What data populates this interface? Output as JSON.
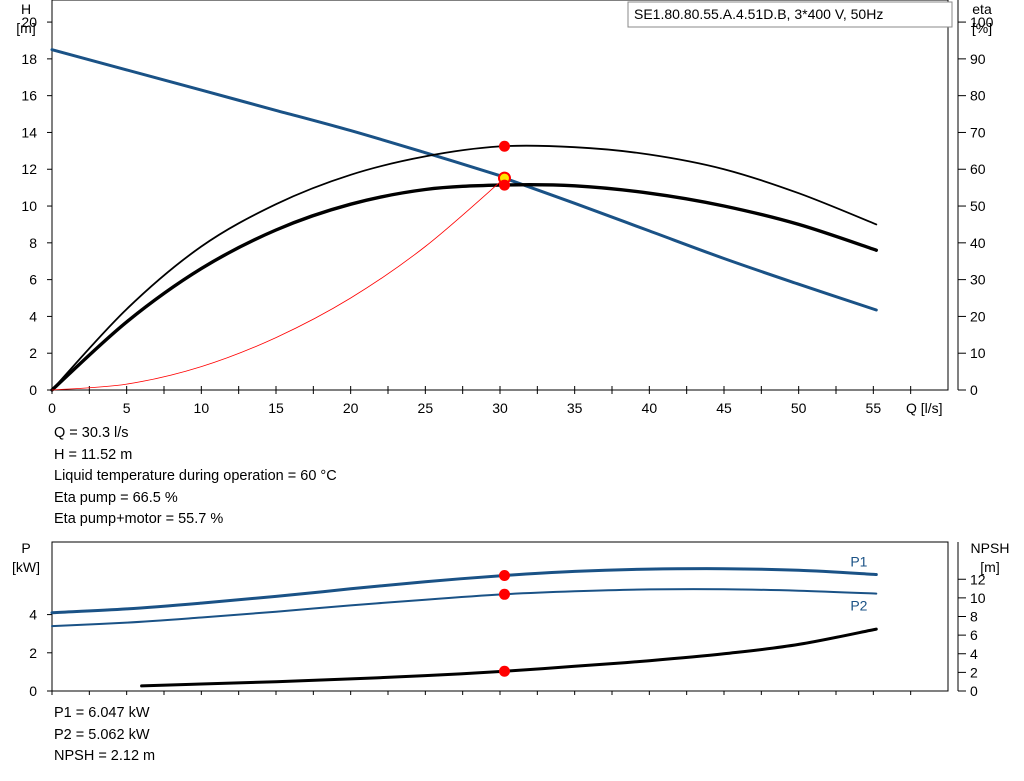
{
  "chart_data": [
    {
      "type": "line",
      "title": "SE1.80.80.55.A.4.51D.B, 3*400  V, 50Hz",
      "xlabel": "Q [l/s]",
      "ylabel_left": [
        "H",
        "[m]"
      ],
      "ylabel_right": [
        "eta",
        "[%]"
      ],
      "xlim": [
        0,
        60
      ],
      "ylim_left": [
        0,
        21.2
      ],
      "ylim_right": [
        0,
        106
      ],
      "x_ticks": [
        "0",
        "5",
        "10",
        "15",
        "20",
        "25",
        "30",
        "35",
        "40",
        "45",
        "50",
        "55"
      ],
      "y_ticks_left": [
        "0",
        "2",
        "4",
        "6",
        "8",
        "10",
        "12",
        "14",
        "16",
        "18",
        "20"
      ],
      "y_ticks_right": [
        "0",
        "10",
        "20",
        "30",
        "40",
        "50",
        "60",
        "70",
        "80",
        "90",
        "100"
      ],
      "grid": false,
      "series": [
        {
          "axis": "left",
          "color": "#1a5286",
          "x": [
            0,
            5,
            10,
            15,
            20,
            25,
            30,
            30.3,
            35,
            40,
            45,
            50,
            55.2
          ],
          "y": [
            18.5,
            17.4,
            16.3,
            15.2,
            14.1,
            12.9,
            11.65,
            11.52,
            10.15,
            8.65,
            7.15,
            5.75,
            4.35
          ]
        },
        {
          "axis": "right",
          "color": "#000000",
          "x": [
            0,
            5,
            10,
            15,
            20,
            25,
            30,
            35,
            40,
            45,
            50,
            55.2
          ],
          "y": [
            0,
            22,
            39,
            50.5,
            58.5,
            63.5,
            66.2,
            66,
            64,
            60,
            53.5,
            45
          ]
        },
        {
          "axis": "right",
          "color": "#000000",
          "x": [
            0,
            5,
            10,
            15,
            20,
            25,
            30,
            35,
            40,
            45,
            50,
            55.2
          ],
          "y": [
            0,
            18.5,
            33,
            43.5,
            50.5,
            54.5,
            55.7,
            55.5,
            53.5,
            50,
            45,
            38
          ]
        },
        {
          "axis": "left",
          "color": "#ff0000",
          "x": [
            0,
            5,
            10,
            15,
            20,
            25,
            30.3
          ],
          "y": [
            0,
            0.32,
            1.27,
            2.85,
            5.0,
            7.8,
            11.52
          ]
        }
      ],
      "operating_points": [
        {
          "axis": "left",
          "x": 30.3,
          "y": 13.25
        },
        {
          "axis": "left",
          "x": 30.3,
          "y": 11.52,
          "marker": "duty"
        },
        {
          "axis": "left",
          "x": 30.3,
          "y": 11.14
        }
      ],
      "readout": [
        "Q = 30.3 l/s",
        "H = 11.52 m",
        "Liquid temperature during operation = 60 °C",
        "Eta pump = 66.5 %",
        "Eta pump+motor = 55.7 %"
      ]
    },
    {
      "type": "line",
      "ylabel_left": [
        "P",
        "[kW]"
      ],
      "ylabel_right": [
        "NPSH",
        "[m]"
      ],
      "xlim": [
        0,
        60
      ],
      "ylim_left": [
        0,
        7.8
      ],
      "ylim_right": [
        0,
        16
      ],
      "y_ticks_left": [
        "0",
        "2",
        "4"
      ],
      "y_ticks_right": [
        "0",
        "2",
        "4",
        "6",
        "8",
        "10",
        "12"
      ],
      "grid": false,
      "series": [
        {
          "name": "P1",
          "axis": "left",
          "color": "#1a5286",
          "x": [
            0,
            5,
            10,
            15,
            20,
            25,
            30.3,
            35,
            40,
            45,
            50,
            55.2
          ],
          "y": [
            4.1,
            4.3,
            4.6,
            4.95,
            5.35,
            5.72,
            6.047,
            6.26,
            6.38,
            6.4,
            6.32,
            6.1
          ]
        },
        {
          "name": "P2",
          "axis": "left",
          "color": "#1a5286",
          "x": [
            0,
            5,
            10,
            15,
            20,
            25,
            30.3,
            35,
            40,
            45,
            50,
            55.2
          ],
          "y": [
            3.4,
            3.58,
            3.85,
            4.15,
            4.48,
            4.78,
            5.062,
            5.22,
            5.32,
            5.33,
            5.25,
            5.1
          ]
        },
        {
          "axis": "right",
          "color": "#000000",
          "x": [
            6,
            10,
            15,
            20,
            25,
            30.3,
            35,
            40,
            45,
            50,
            55.2
          ],
          "y": [
            0.55,
            0.75,
            1.0,
            1.3,
            1.65,
            2.12,
            2.65,
            3.25,
            4.0,
            5.0,
            6.65
          ]
        }
      ],
      "operating_points": [
        {
          "axis": "left",
          "x": 30.3,
          "y": 6.047
        },
        {
          "axis": "left",
          "x": 30.3,
          "y": 5.062
        },
        {
          "axis": "right",
          "x": 30.3,
          "y": 2.12
        }
      ],
      "readout": [
        "P1 = 6.047 kW",
        "P2 = 5.062 kW",
        "NPSH = 2.12 m"
      ]
    }
  ]
}
